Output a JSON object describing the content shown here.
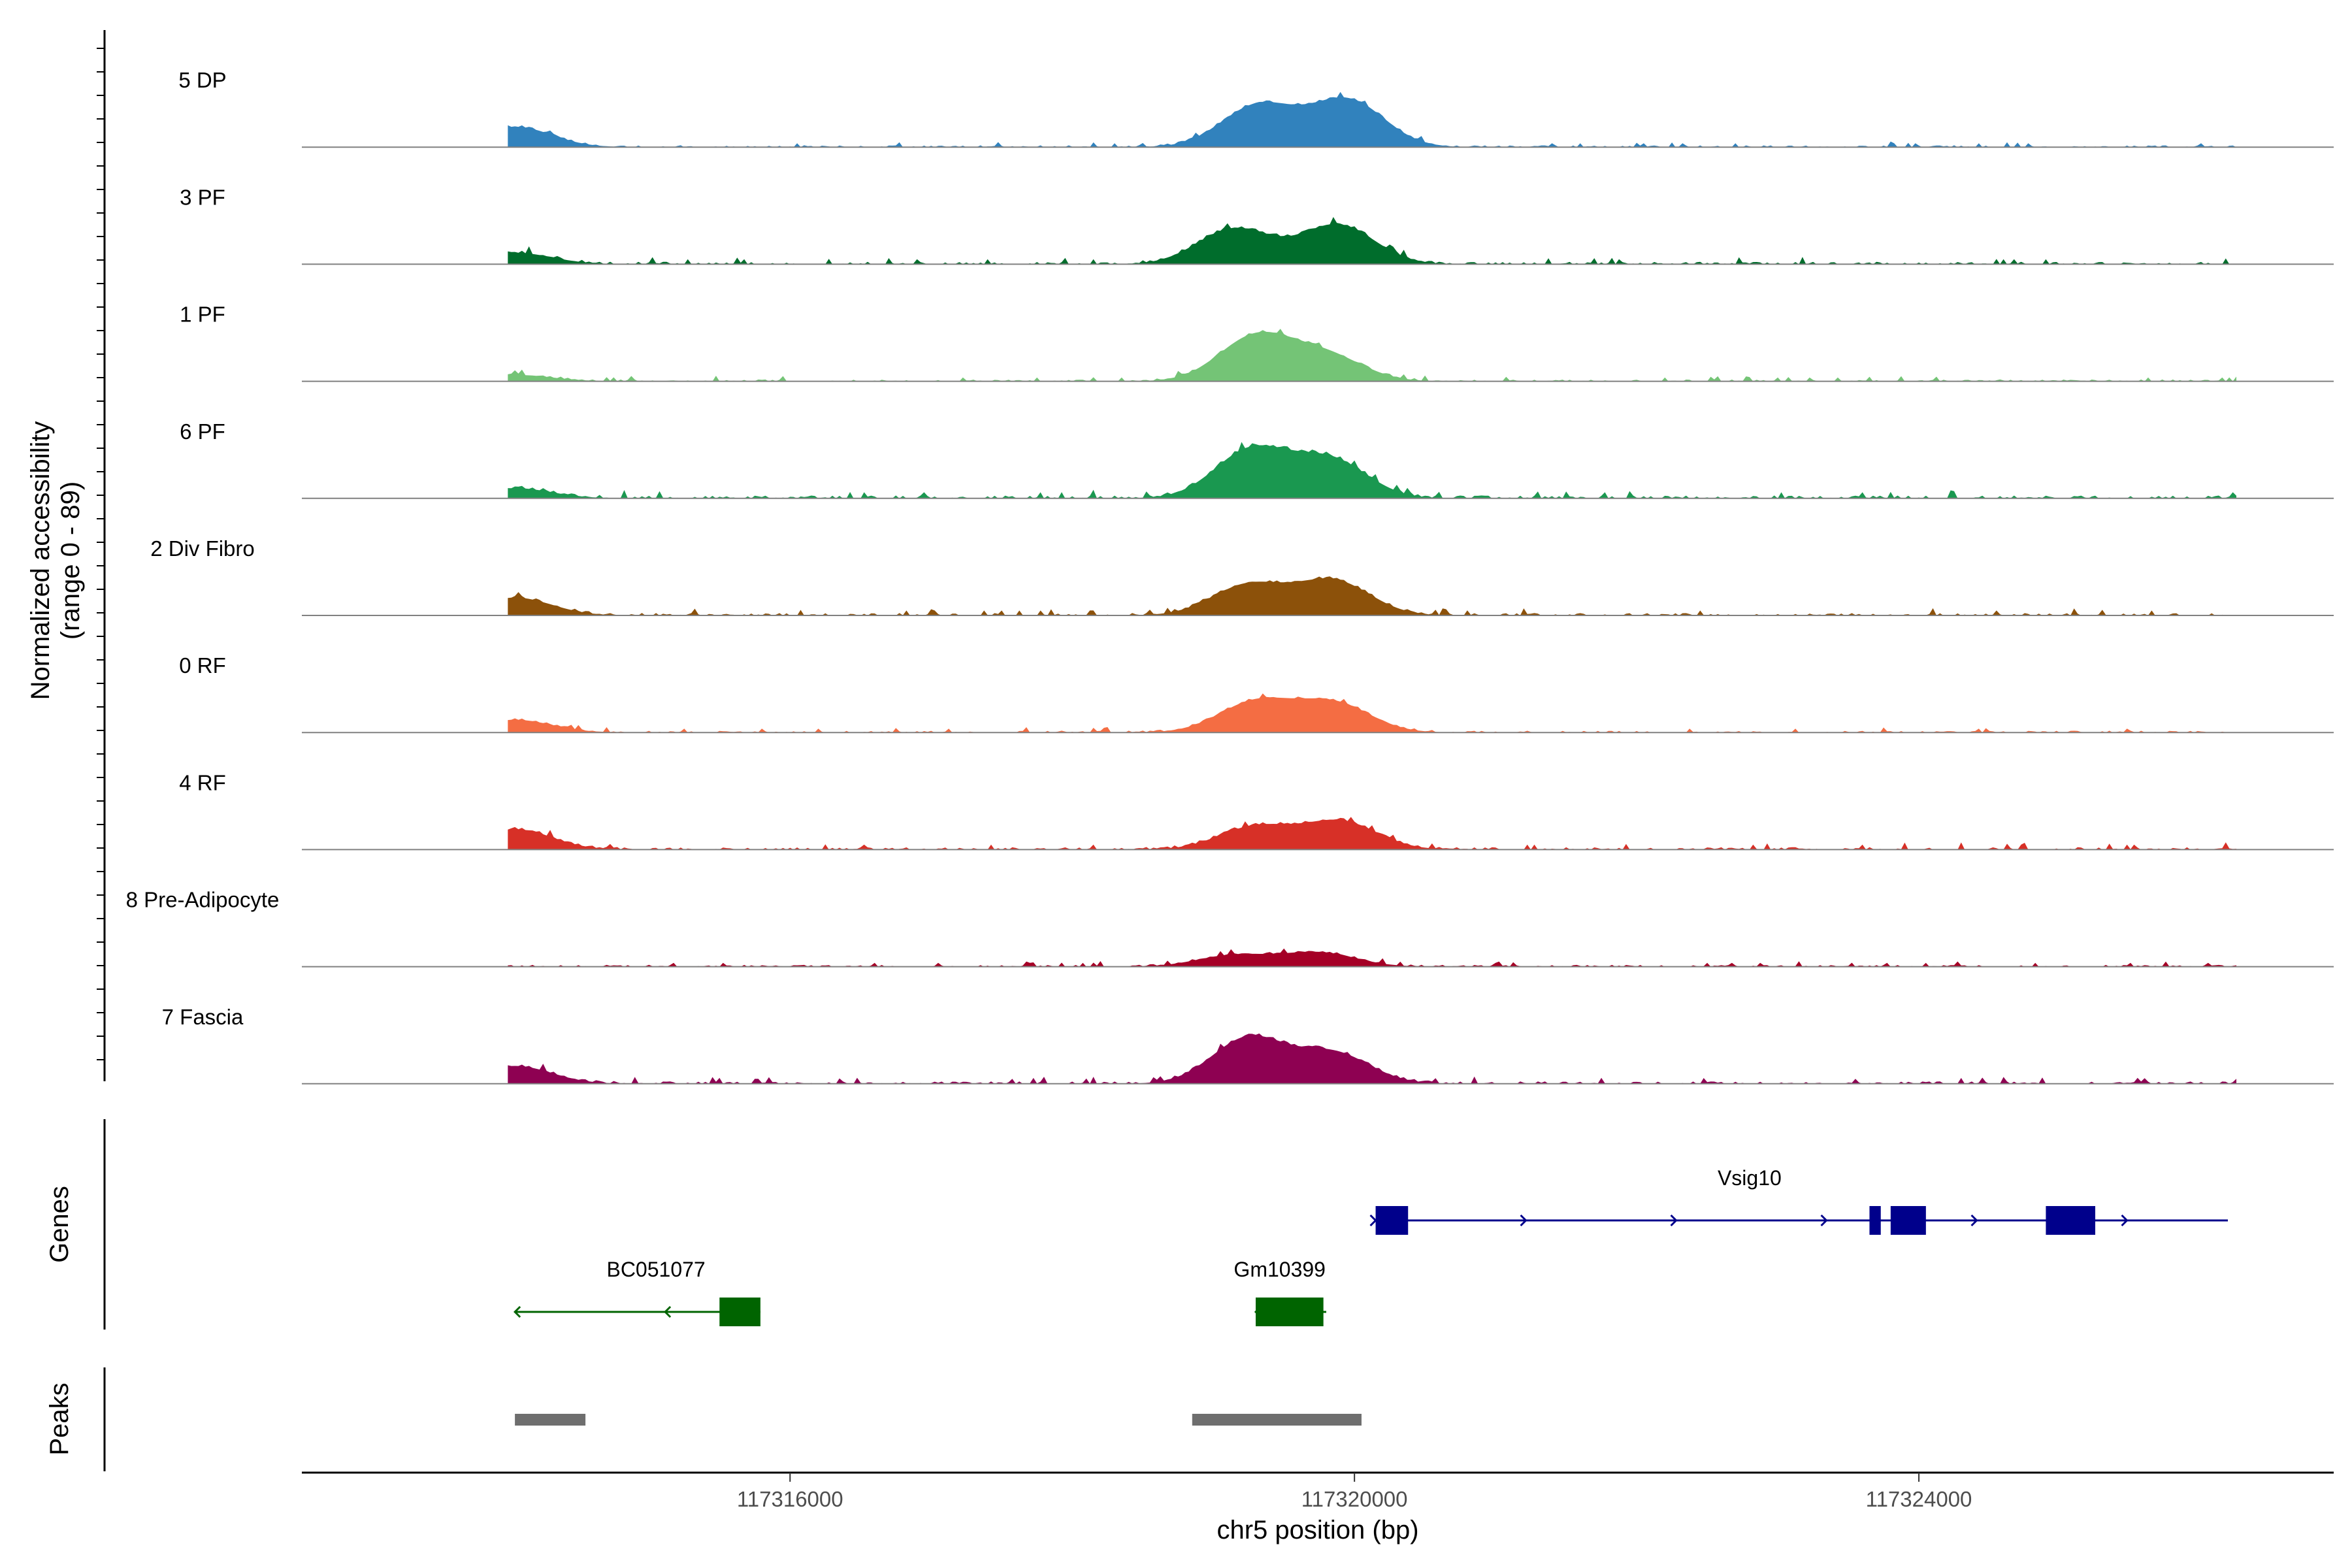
{
  "chart_data": {
    "type": "area",
    "title": "",
    "ylabel_line1": "Normalized accessibility",
    "ylabel_line2": "(range 0 - 89)",
    "ylim": [
      0,
      89
    ],
    "xlabel": "chr5 position (bp)",
    "xlim": [
      117312540,
      117326940
    ],
    "x_ticks": [
      117316000,
      117320000,
      117324000
    ],
    "x_tick_labels": [
      "117316000",
      "117320000",
      "117324000"
    ],
    "tracks": [
      {
        "name": "5 DP",
        "color": "#3182BD",
        "peaks": [
          [
            117314050,
            16
          ],
          [
            117319320,
            33
          ],
          [
            117319950,
            37
          ]
        ],
        "noise": 1.0
      },
      {
        "name": "3 PF",
        "color": "#006D2C",
        "peaks": [
          [
            117314050,
            9
          ],
          [
            117319150,
            28
          ],
          [
            117319880,
            31
          ]
        ],
        "noise": 1.3
      },
      {
        "name": "1 PF",
        "color": "#74C476",
        "peaks": [
          [
            117314050,
            5
          ],
          [
            117319300,
            35
          ],
          [
            117319800,
            20
          ]
        ],
        "noise": 1.0
      },
      {
        "name": "6 PF",
        "color": "#1A9850",
        "peaks": [
          [
            117314050,
            8
          ],
          [
            117319270,
            38
          ],
          [
            117319830,
            30
          ]
        ],
        "noise": 1.6
      },
      {
        "name": "2 Div Fibro",
        "color": "#8C510A",
        "peaks": [
          [
            117314050,
            14
          ],
          [
            117319250,
            24
          ],
          [
            117319850,
            27
          ]
        ],
        "noise": 1.3
      },
      {
        "name": "0 RF",
        "color": "#F46D43",
        "peaks": [
          [
            117314050,
            10
          ],
          [
            117319300,
            24
          ],
          [
            117319850,
            23
          ]
        ],
        "noise": 1.0
      },
      {
        "name": "4 RF",
        "color": "#D73027",
        "peaks": [
          [
            117314050,
            16
          ],
          [
            117319300,
            18
          ],
          [
            117319900,
            22
          ]
        ],
        "noise": 1.3
      },
      {
        "name": "8 Pre-Adipocyte",
        "color": "#A50026",
        "peaks": [
          [
            117319150,
            9
          ],
          [
            117319750,
            11
          ]
        ],
        "noise": 1.0
      },
      {
        "name": "7 Fascia",
        "color": "#8E0152",
        "peaks": [
          [
            117314050,
            14
          ],
          [
            117319250,
            36
          ],
          [
            117319850,
            24
          ]
        ],
        "noise": 1.3
      }
    ],
    "gene_panel_label": "Genes",
    "genes": [
      {
        "name": "Vsig10",
        "strand": "+",
        "start": 117320150,
        "end": 117326190,
        "color": "#00008B",
        "exons": [
          [
            117320150,
            117320380
          ],
          [
            117323650,
            117323730
          ],
          [
            117323800,
            117324050
          ],
          [
            117324900,
            117325250
          ]
        ]
      },
      {
        "name": "BC051077",
        "strand": "-",
        "start": 117314050,
        "end": 117315790,
        "color": "#006400",
        "exons": [
          [
            117315500,
            117315790
          ]
        ]
      },
      {
        "name": "Gm10399",
        "strand": "-",
        "start": 117319300,
        "end": 117319800,
        "color": "#006400",
        "exons": [
          [
            117319300,
            117319780
          ]
        ]
      }
    ],
    "peak_panel_label": "Peaks",
    "peak_regions": [
      [
        117314050,
        117314550
      ],
      [
        117318850,
        117320050
      ]
    ]
  }
}
